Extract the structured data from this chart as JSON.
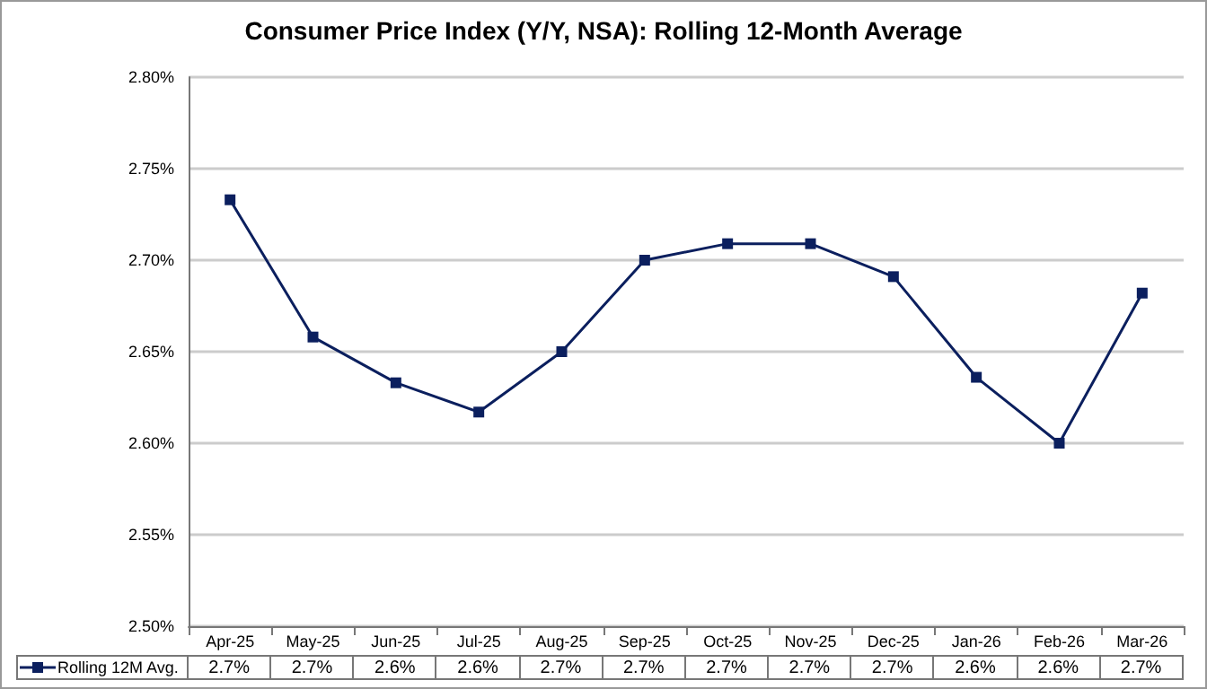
{
  "chart_data": {
    "type": "line",
    "title": "Consumer Price Index (Y/Y, NSA): Rolling 12-Month Average",
    "categories": [
      "Apr-25",
      "May-25",
      "Jun-25",
      "Jul-25",
      "Aug-25",
      "Sep-25",
      "Oct-25",
      "Nov-25",
      "Dec-25",
      "Jan-26",
      "Feb-26",
      "Mar-26"
    ],
    "series": [
      {
        "name": "Rolling 12M Avg.",
        "color": "#0b1f5e",
        "values": [
          2.733,
          2.658,
          2.633,
          2.617,
          2.65,
          2.7,
          2.709,
          2.709,
          2.691,
          2.636,
          2.6,
          2.682
        ],
        "value_labels": [
          "2.7%",
          "2.7%",
          "2.6%",
          "2.6%",
          "2.7%",
          "2.7%",
          "2.7%",
          "2.7%",
          "2.7%",
          "2.6%",
          "2.6%",
          "2.7%"
        ]
      }
    ],
    "ylim": [
      2.5,
      2.8
    ],
    "yticks": [
      {
        "value": 2.5,
        "label": "2.50%"
      },
      {
        "value": 2.55,
        "label": "2.55%"
      },
      {
        "value": 2.6,
        "label": "2.60%"
      },
      {
        "value": 2.65,
        "label": "2.65%"
      },
      {
        "value": 2.7,
        "label": "2.70%"
      },
      {
        "value": 2.75,
        "label": "2.75%"
      },
      {
        "value": 2.8,
        "label": "2.80%"
      }
    ],
    "grid": "y",
    "legend": "bottom",
    "marker": "square",
    "line_style": "solid"
  }
}
